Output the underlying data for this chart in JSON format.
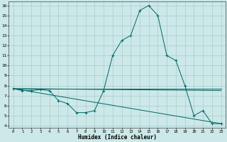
{
  "title": "",
  "xlabel": "Humidex (Indice chaleur)",
  "ylabel": "",
  "bg_color": "#cce8e8",
  "grid_color": "#aacccc",
  "line_color": "#006666",
  "xlim": [
    -0.5,
    23.5
  ],
  "ylim": [
    3.8,
    16.4
  ],
  "xticks": [
    0,
    1,
    2,
    3,
    4,
    5,
    6,
    7,
    8,
    9,
    10,
    11,
    12,
    13,
    14,
    15,
    16,
    17,
    18,
    19,
    20,
    21,
    22,
    23
  ],
  "yticks": [
    4,
    5,
    6,
    7,
    8,
    9,
    10,
    11,
    12,
    13,
    14,
    15,
    16
  ],
  "line1_x": [
    0,
    1,
    2,
    3,
    4,
    5,
    6,
    7,
    8,
    9,
    10,
    11,
    12,
    13,
    14,
    15,
    16,
    17,
    18,
    19,
    20,
    21,
    22,
    23
  ],
  "line1_y": [
    7.7,
    7.5,
    7.5,
    7.6,
    7.5,
    6.5,
    6.2,
    5.3,
    5.3,
    5.5,
    7.5,
    11.0,
    12.5,
    13.0,
    15.5,
    16.0,
    15.0,
    11.0,
    10.5,
    8.0,
    5.0,
    5.5,
    4.2,
    4.2
  ],
  "line2_x": [
    0,
    23
  ],
  "line2_y": [
    7.7,
    7.7
  ],
  "line3_x": [
    0,
    23
  ],
  "line3_y": [
    7.7,
    4.2
  ],
  "line4_x": [
    0,
    23
  ],
  "line4_y": [
    7.7,
    7.5
  ],
  "marker": "+"
}
